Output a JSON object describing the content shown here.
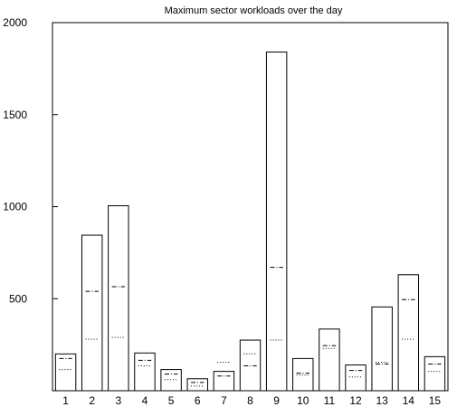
{
  "colors": {
    "background": "#ffffff",
    "stroke": "#000000"
  },
  "chart_data": {
    "type": "bar",
    "title": "Maximum sector workloads over the day",
    "xlabel": "",
    "ylabel": "",
    "ylim": [
      0,
      2000
    ],
    "yticks": [
      "500",
      "1000",
      "1500",
      "2000"
    ],
    "categories": [
      "1",
      "2",
      "3",
      "4",
      "5",
      "6",
      "7",
      "8",
      "9",
      "10",
      "11",
      "12",
      "13",
      "14",
      "15"
    ],
    "values": [
      200,
      845,
      1005,
      205,
      115,
      65,
      105,
      275,
      1840,
      175,
      335,
      140,
      455,
      630,
      185
    ],
    "markers": [
      {
        "style": "dash-dot",
        "values": [
          175,
          540,
          565,
          165,
          90,
          45,
          80,
          135,
          670,
          95,
          245,
          110,
          145,
          495,
          145
        ]
      },
      {
        "style": "dotted",
        "values": [
          115,
          280,
          290,
          135,
          60,
          25,
          155,
          200,
          275,
          85,
          230,
          75,
          155,
          280,
          105
        ]
      }
    ],
    "grid": false,
    "legend": "none"
  }
}
